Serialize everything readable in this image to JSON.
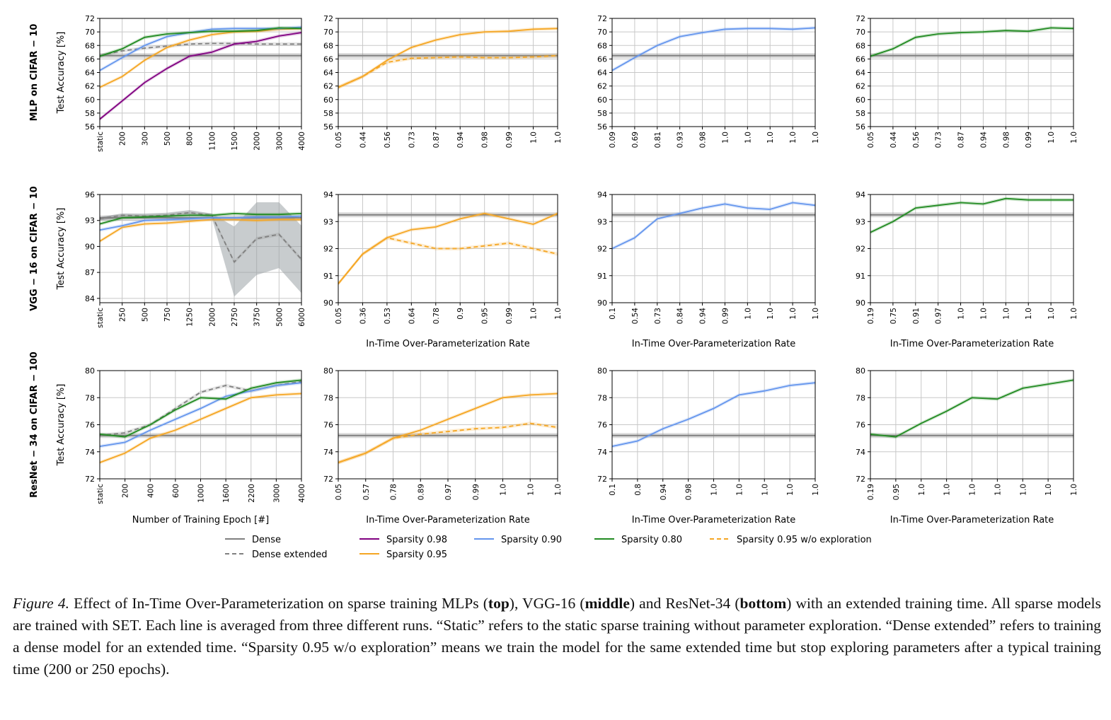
{
  "colors": {
    "dense": "#808080",
    "sp098": "#800080",
    "sp090": "#6495ED",
    "sp080": "#228B22",
    "sp095": "#F5A623",
    "band_dense": "#9aa3a6",
    "grid": "#c8c8c8"
  },
  "legend": {
    "dense": "Dense",
    "dense_extended": "Dense extended",
    "sp098": "Sparsity 0.98",
    "sp095": "Sparsity 0.95",
    "sp090": "Sparsity 0.90",
    "sp080": "Sparsity 0.80",
    "sp095_noexp": "Sparsity 0.95 w/o exploration"
  },
  "caption": {
    "label": "Figure 4.",
    "p1": " Effect of In-Time Over-Parameterization on sparse training MLPs (",
    "b1": "top",
    "p2": "), VGG-16 (",
    "b2": "middle",
    "p3": ") and ResNet-34 (",
    "b3": "bottom",
    "p4": ") with an extended training time. All sparse models are trained with SET. Each line is averaged from three different runs. “Static” refers to the static sparse training without parameter exploration. “Dense extended” refers to training a dense model for an extended time. “Sparsity 0.95 w/o exploration” means we train the model for the same extended time but stop exploring parameters after a typical training time (200 or 250 epochs)."
  },
  "chart_data": [
    {
      "type": "line",
      "row": 0,
      "col": 0,
      "row_title": "MLP on CIFAR − 10",
      "ylabel": "Test Accuracy [%]",
      "xlabel": "",
      "ylim": [
        56,
        72
      ],
      "yticks": [
        56,
        58,
        60,
        62,
        64,
        66,
        68,
        70,
        72
      ],
      "xticks": [
        "static",
        "200",
        "300",
        "500",
        "800",
        "1100",
        "1500",
        "2000",
        "3000",
        "4000"
      ],
      "dense": 66.5,
      "series": [
        {
          "key": "dense_ext",
          "dash": true,
          "values": [
            66.5,
            67.2,
            67.6,
            67.9,
            68.2,
            68.3,
            68.3,
            68.2,
            68.2,
            68.2
          ]
        },
        {
          "key": "sp098",
          "values": [
            57.1,
            59.8,
            62.5,
            64.6,
            66.4,
            67.0,
            68.2,
            68.6,
            69.4,
            69.9
          ]
        },
        {
          "key": "sp095",
          "values": [
            61.8,
            63.4,
            65.8,
            67.7,
            68.8,
            69.6,
            70.0,
            70.1,
            70.4,
            70.5
          ]
        },
        {
          "key": "sp090",
          "values": [
            64.3,
            66.2,
            68.0,
            69.3,
            69.9,
            70.4,
            70.5,
            70.5,
            70.5,
            70.7
          ]
        },
        {
          "key": "sp080",
          "values": [
            66.4,
            67.5,
            69.2,
            69.7,
            69.9,
            70.1,
            70.1,
            70.2,
            70.6,
            70.5
          ]
        }
      ]
    },
    {
      "type": "line",
      "row": 0,
      "col": 1,
      "ylabel": "",
      "xlabel": "",
      "ylim": [
        56,
        72
      ],
      "yticks": [
        56,
        58,
        60,
        62,
        64,
        66,
        68,
        70,
        72
      ],
      "xticks": [
        "0.05",
        "0.44",
        "0.56",
        "0.73",
        "0.87",
        "0.94",
        "0.98",
        "0.99",
        "1.0",
        "1.0"
      ],
      "dense": 66.5,
      "series": [
        {
          "key": "sp095",
          "values": [
            61.8,
            63.4,
            65.8,
            67.7,
            68.8,
            69.6,
            70.0,
            70.1,
            70.4,
            70.5
          ]
        },
        {
          "key": "sp095_noexp",
          "dash": true,
          "values": [
            61.8,
            63.4,
            65.5,
            66.1,
            66.2,
            66.3,
            66.2,
            66.2,
            66.3,
            66.5
          ]
        }
      ]
    },
    {
      "type": "line",
      "row": 0,
      "col": 2,
      "ylabel": "",
      "xlabel": "",
      "ylim": [
        56,
        72
      ],
      "yticks": [
        56,
        58,
        60,
        62,
        64,
        66,
        68,
        70,
        72
      ],
      "xticks": [
        "0.09",
        "0.69",
        "0.81",
        "0.93",
        "0.98",
        "1.0",
        "1.0",
        "1.0",
        "1.0",
        "1.0"
      ],
      "dense": 66.5,
      "series": [
        {
          "key": "sp090",
          "values": [
            64.3,
            66.2,
            68.0,
            69.3,
            69.9,
            70.4,
            70.5,
            70.5,
            70.4,
            70.6
          ]
        }
      ]
    },
    {
      "type": "line",
      "row": 0,
      "col": 3,
      "ylabel": "",
      "xlabel": "",
      "ylim": [
        56,
        72
      ],
      "yticks": [
        56,
        58,
        60,
        62,
        64,
        66,
        68,
        70,
        72
      ],
      "xticks": [
        "0.05",
        "0.44",
        "0.56",
        "0.73",
        "0.87",
        "0.94",
        "0.98",
        "0.99",
        "1.0",
        "1.0"
      ],
      "dense": 66.5,
      "series": [
        {
          "key": "sp080",
          "values": [
            66.4,
            67.5,
            69.2,
            69.7,
            69.9,
            70.0,
            70.2,
            70.1,
            70.6,
            70.5
          ]
        }
      ]
    },
    {
      "type": "line",
      "row": 1,
      "col": 0,
      "row_title": "VGG − 16 on CIFAR − 10",
      "ylabel": "Test Accuracy [%]",
      "xlabel": "",
      "ylim": [
        83.5,
        96
      ],
      "yticks": [
        84,
        87,
        90,
        93,
        96
      ],
      "xticks": [
        "static",
        "250",
        "500",
        "750",
        "1250",
        "2000",
        "2750",
        "3750",
        "5000",
        "6000"
      ],
      "dense": 93.3,
      "dense_ext_band": [
        [
          93.0,
          93.4
        ],
        [
          93.3,
          93.8
        ],
        [
          93.2,
          93.8
        ],
        [
          93.3,
          93.9
        ],
        [
          93.7,
          94.2
        ],
        [
          93.3,
          93.8
        ],
        [
          84.2,
          92.3
        ],
        [
          86.7,
          95.1
        ],
        [
          87.5,
          95.1
        ],
        [
          84.6,
          92.4
        ]
      ],
      "series": [
        {
          "key": "dense_ext",
          "dash": true,
          "values": [
            93.2,
            93.6,
            93.5,
            93.6,
            93.9,
            93.6,
            88.2,
            90.9,
            91.4,
            88.5
          ]
        },
        {
          "key": "sp095",
          "values": [
            90.6,
            92.2,
            92.6,
            92.7,
            92.9,
            93.1,
            93.1,
            93.0,
            93.1,
            93.1
          ]
        },
        {
          "key": "sp090",
          "values": [
            91.9,
            92.4,
            93.0,
            93.1,
            93.2,
            93.3,
            93.3,
            93.4,
            93.4,
            93.5
          ]
        },
        {
          "key": "sp080",
          "values": [
            92.6,
            93.3,
            93.4,
            93.5,
            93.6,
            93.6,
            93.8,
            93.7,
            93.7,
            93.8
          ]
        }
      ]
    },
    {
      "type": "line",
      "row": 1,
      "col": 1,
      "ylabel": "",
      "xlabel": "In-Time Over-Parameterization Rate",
      "ylim": [
        90,
        94
      ],
      "yticks": [
        90,
        91,
        92,
        93,
        94
      ],
      "xticks": [
        "0.05",
        "0.36",
        "0.53",
        "0.64",
        "0.78",
        "0.9",
        "0.95",
        "0.99",
        "1.0",
        "1.0"
      ],
      "dense": 93.25,
      "series": [
        {
          "key": "sp095",
          "values": [
            90.7,
            91.8,
            92.4,
            92.7,
            92.8,
            93.1,
            93.3,
            93.1,
            92.9,
            93.3
          ]
        },
        {
          "key": "sp095_noexp",
          "dash": true,
          "values": [
            90.7,
            91.8,
            92.4,
            92.2,
            92.0,
            92.0,
            92.1,
            92.2,
            92.0,
            91.8
          ]
        }
      ]
    },
    {
      "type": "line",
      "row": 1,
      "col": 2,
      "ylabel": "",
      "xlabel": "In-Time Over-Parameterization Rate",
      "ylim": [
        90,
        94
      ],
      "yticks": [
        90,
        91,
        92,
        93,
        94
      ],
      "xticks": [
        "0.1",
        "0.54",
        "0.73",
        "0.84",
        "0.94",
        "0.99",
        "1.0",
        "1.0",
        "1.0",
        "1.0"
      ],
      "dense": 93.25,
      "series": [
        {
          "key": "sp090",
          "values": [
            92.0,
            92.4,
            93.1,
            93.3,
            93.5,
            93.65,
            93.5,
            93.45,
            93.7,
            93.6
          ]
        }
      ]
    },
    {
      "type": "line",
      "row": 1,
      "col": 3,
      "ylabel": "",
      "xlabel": "In-Time Over-Parameterization Rate",
      "ylim": [
        90,
        94
      ],
      "yticks": [
        90,
        91,
        92,
        93,
        94
      ],
      "xticks": [
        "0.19",
        "0.75",
        "0.91",
        "0.97",
        "1.0",
        "1.0",
        "1.0",
        "1.0",
        "1.0",
        "1.0"
      ],
      "dense": 93.25,
      "series": [
        {
          "key": "sp080",
          "values": [
            92.6,
            93.0,
            93.5,
            93.6,
            93.7,
            93.65,
            93.85,
            93.8,
            93.8,
            93.8
          ]
        }
      ]
    },
    {
      "type": "line",
      "row": 2,
      "col": 0,
      "row_title": "ResNet − 34 on CIFAR − 100",
      "ylabel": "Test Accuracy [%]",
      "xlabel": "Number of Training Epoch [#]",
      "ylim": [
        72,
        80
      ],
      "yticks": [
        72,
        74,
        76,
        78,
        80
      ],
      "xticks": [
        "static",
        "200",
        "400",
        "600",
        "1000",
        "1600",
        "2200",
        "3000",
        "4000"
      ],
      "dense": 75.2,
      "series": [
        {
          "key": "dense_ext",
          "dash": true,
          "values": [
            75.2,
            75.4,
            76.0,
            77.2,
            78.4,
            78.9,
            78.5,
            78.9,
            79.2
          ]
        },
        {
          "key": "sp095",
          "values": [
            73.2,
            73.9,
            75.0,
            75.6,
            76.4,
            77.2,
            78.0,
            78.2,
            78.3
          ]
        },
        {
          "key": "sp090",
          "values": [
            74.4,
            74.7,
            75.6,
            76.4,
            77.2,
            78.1,
            78.5,
            78.9,
            79.1
          ]
        },
        {
          "key": "sp080",
          "values": [
            75.3,
            75.1,
            76.0,
            77.1,
            78.0,
            77.9,
            78.7,
            79.1,
            79.3
          ]
        }
      ]
    },
    {
      "type": "line",
      "row": 2,
      "col": 1,
      "ylabel": "",
      "xlabel": "In-Time Over-Parameterization Rate",
      "ylim": [
        72,
        80
      ],
      "yticks": [
        72,
        74,
        76,
        78,
        80
      ],
      "xticks": [
        "0.05",
        "0.57",
        "0.78",
        "0.89",
        "0.97",
        "0.99",
        "1.0",
        "1.0",
        "1.0"
      ],
      "dense": 75.2,
      "series": [
        {
          "key": "sp095",
          "values": [
            73.2,
            73.9,
            75.0,
            75.6,
            76.4,
            77.2,
            78.0,
            78.2,
            78.3
          ]
        },
        {
          "key": "sp095_noexp",
          "dash": true,
          "values": [
            73.2,
            73.9,
            75.0,
            75.3,
            75.5,
            75.7,
            75.8,
            76.1,
            75.8
          ]
        }
      ]
    },
    {
      "type": "line",
      "row": 2,
      "col": 2,
      "ylabel": "",
      "xlabel": "In-Time Over-Parameterization Rate",
      "ylim": [
        72,
        80
      ],
      "yticks": [
        72,
        74,
        76,
        78,
        80
      ],
      "xticks": [
        "0.1",
        "0.8",
        "0.94",
        "0.98",
        "1.0",
        "1.0",
        "1.0",
        "1.0",
        "1.0"
      ],
      "dense": 75.2,
      "series": [
        {
          "key": "sp090",
          "values": [
            74.4,
            74.8,
            75.7,
            76.4,
            77.2,
            78.2,
            78.5,
            78.9,
            79.1
          ]
        }
      ]
    },
    {
      "type": "line",
      "row": 2,
      "col": 3,
      "ylabel": "",
      "xlabel": "In-Time Over-Parameterization Rate",
      "ylim": [
        72,
        80
      ],
      "yticks": [
        72,
        74,
        76,
        78,
        80
      ],
      "xticks": [
        "0.19",
        "0.95",
        "1.0",
        "1.0",
        "1.0",
        "1.0",
        "1.0",
        "1.0",
        "1.0"
      ],
      "dense": 75.2,
      "series": [
        {
          "key": "sp080",
          "values": [
            75.3,
            75.1,
            76.1,
            77.0,
            78.0,
            77.9,
            78.7,
            79.0,
            79.3
          ]
        }
      ]
    }
  ]
}
